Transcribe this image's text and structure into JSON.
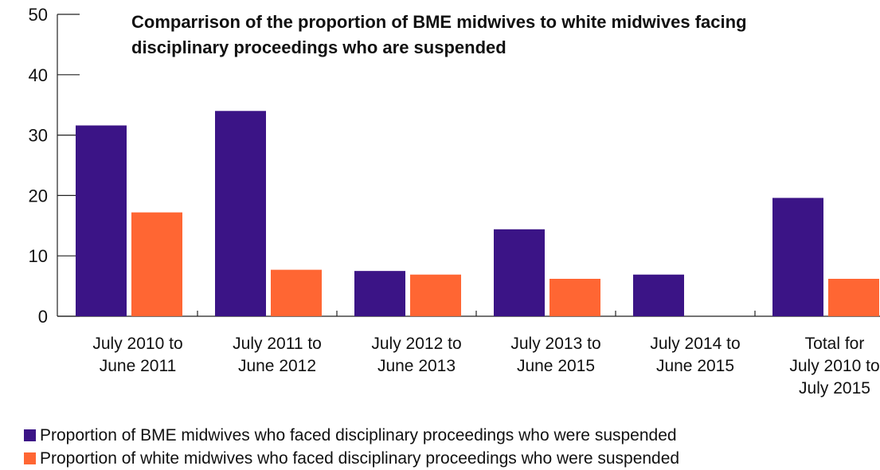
{
  "chart_data": {
    "type": "bar",
    "title": "Comparrison of the proportion of BME midwives to white midwives facing disciplinary proceedings who are suspended",
    "title_lines": [
      "Comparrison of the proportion of BME midwives to white midwives facing",
      "disciplinary proceedings who are suspended"
    ],
    "categories": [
      "July 2010 to June 2011",
      "July 2011 to June 2012",
      "July 2012 to June 2013",
      "July 2013 to June 2015",
      "July 2014 to June 2015",
      "Total for July 2010 to July 2015"
    ],
    "category_lines": [
      [
        "July 2010 to",
        "June 2011"
      ],
      [
        "July 2011 to",
        "June 2012"
      ],
      [
        "July 2012 to",
        "June 2013"
      ],
      [
        "July 2013 to",
        "June 2015"
      ],
      [
        "July 2014 to",
        "June 2015"
      ],
      [
        "Total for",
        "July 2010 to",
        "July 2015"
      ]
    ],
    "series": [
      {
        "name": "Proportion of BME midwives who faced disciplinary proceedings who were suspended",
        "color": "#3b1486",
        "values": [
          31.6,
          34.0,
          7.5,
          14.4,
          6.9,
          19.6
        ]
      },
      {
        "name": "Proportion of white midwives who faced disciplinary proceedings who were suspended",
        "color": "#ff6633",
        "values": [
          17.2,
          7.7,
          6.9,
          6.2,
          0,
          6.2
        ]
      }
    ],
    "xlabel": "",
    "ylabel": "",
    "ylim": [
      0,
      50
    ],
    "yticks": [
      0,
      10,
      20,
      30,
      40,
      50
    ],
    "grid": false,
    "legend_position": "bottom-left"
  }
}
